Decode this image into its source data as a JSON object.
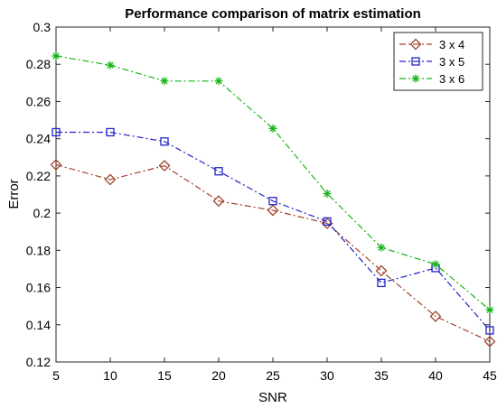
{
  "chart_data": {
    "type": "line",
    "title": "Performance comparison of matrix estimation",
    "xlabel": "SNR",
    "ylabel": "Error",
    "x": [
      5,
      10,
      15,
      20,
      25,
      30,
      35,
      40,
      45
    ],
    "xlim": [
      5,
      45
    ],
    "ylim": [
      0.12,
      0.3
    ],
    "xticks": [
      "5",
      "10",
      "15",
      "20",
      "25",
      "30",
      "35",
      "40",
      "45"
    ],
    "yticks": [
      "0.12",
      "0.14",
      "0.16",
      "0.18",
      "0.2",
      "0.22",
      "0.24",
      "0.26",
      "0.28",
      "0.3"
    ],
    "grid": false,
    "legend_position": "top-right",
    "series": [
      {
        "name": "3 x 4",
        "color": "#a0442c",
        "marker": "diamond",
        "line_style": "dash-dot",
        "values": [
          0.226,
          0.218,
          0.2255,
          0.2065,
          0.2015,
          0.1945,
          0.169,
          0.1445,
          0.131
        ]
      },
      {
        "name": "3 x 5",
        "color": "#2424c8",
        "marker": "square",
        "line_style": "dash-dot",
        "values": [
          0.2435,
          0.2435,
          0.2385,
          0.2225,
          0.2065,
          0.1955,
          0.1625,
          0.1705,
          0.137
        ]
      },
      {
        "name": "3 x 6",
        "color": "#16b516",
        "marker": "asterisk",
        "line_style": "dash-dot",
        "values": [
          0.2845,
          0.2795,
          0.271,
          0.271,
          0.2455,
          0.2105,
          0.1815,
          0.1725,
          0.148
        ]
      }
    ]
  }
}
